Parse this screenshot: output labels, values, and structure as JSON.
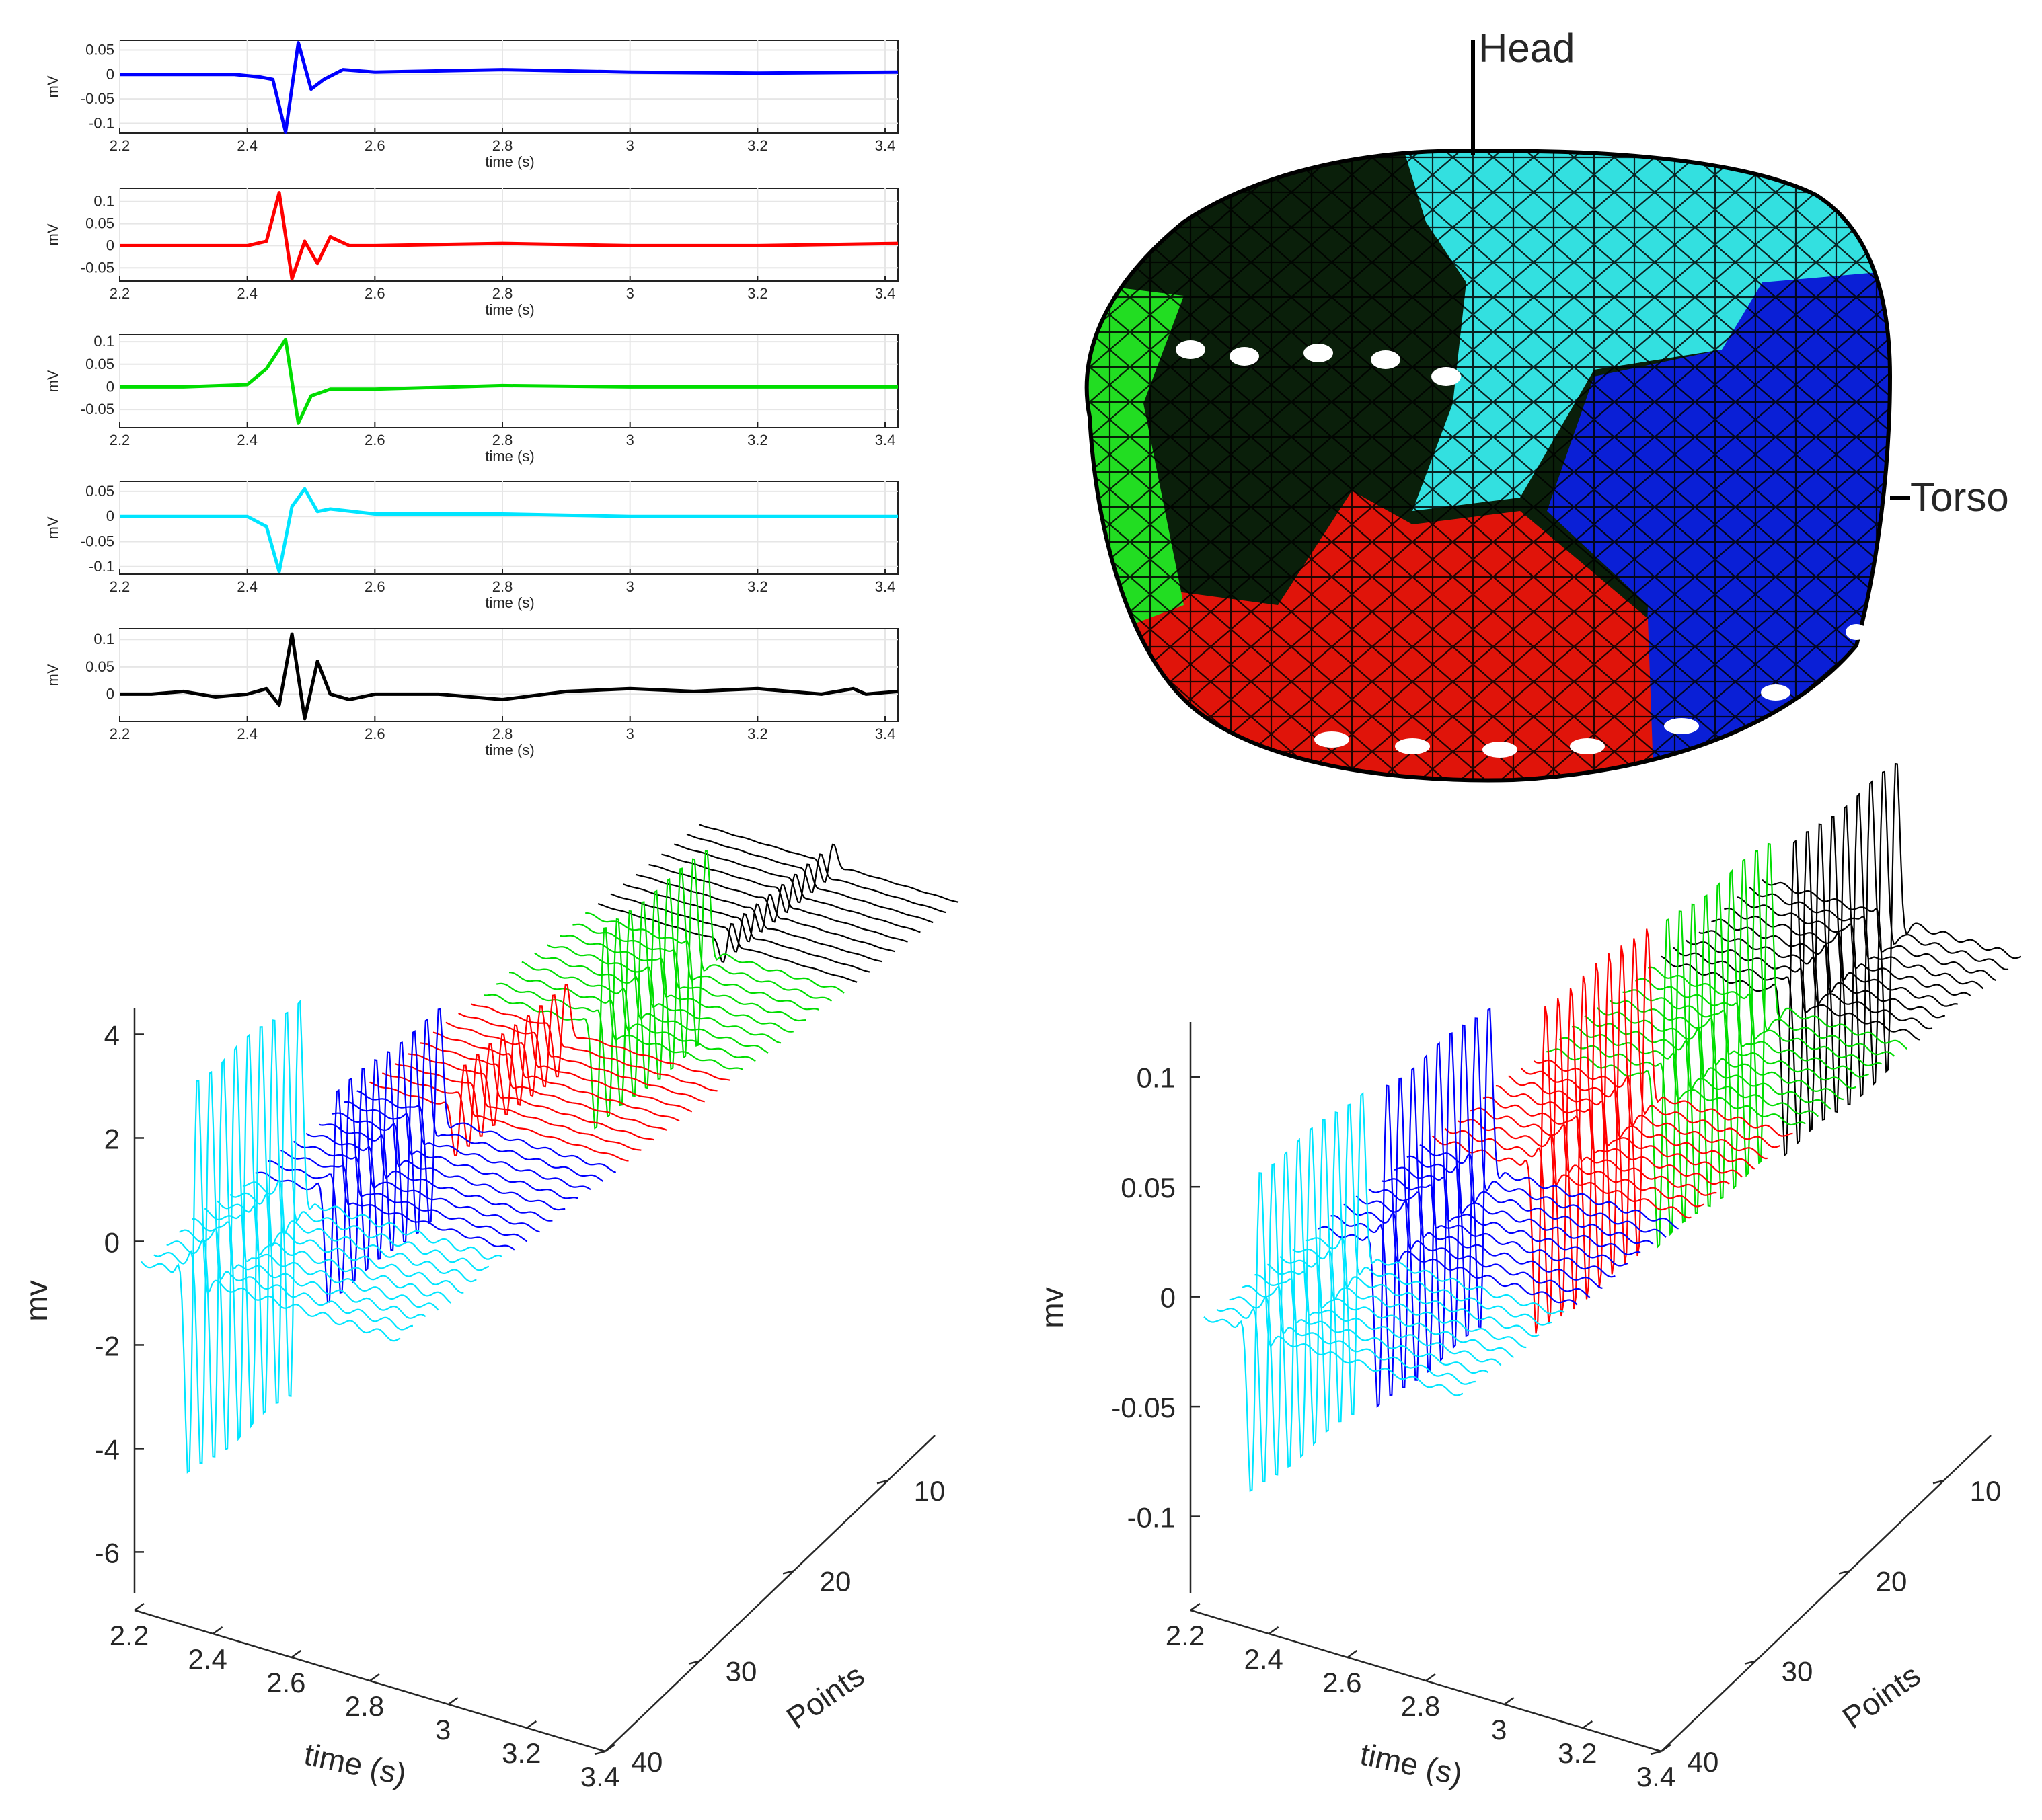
{
  "chart_data": {
    "small_panels": [
      {
        "type": "line",
        "color": "#0000ff",
        "ylabel": "mV",
        "xlabel": "time (s)",
        "xlim": [
          2.2,
          3.42
        ],
        "ylim": [
          -0.12,
          0.07
        ],
        "yticks": [
          0.05,
          0,
          -0.05,
          -0.1
        ],
        "yticklabels": [
          "0.05",
          "0",
          "-0.05",
          "-0.1"
        ],
        "xticks": [
          2.2,
          2.4,
          2.6,
          2.8,
          3,
          3.2,
          3.4
        ],
        "xticklabels": [
          "2.2",
          "2.4",
          "2.6",
          "2.8",
          "3",
          "3.2",
          "3.4"
        ],
        "x": [
          2.2,
          2.3,
          2.38,
          2.42,
          2.44,
          2.46,
          2.48,
          2.5,
          2.52,
          2.55,
          2.6,
          2.8,
          3.0,
          3.2,
          3.42
        ],
        "y": [
          0,
          0,
          0,
          -0.005,
          -0.01,
          -0.118,
          0.065,
          -0.03,
          -0.01,
          0.01,
          0.005,
          0.01,
          0.005,
          0.003,
          0.005
        ]
      },
      {
        "type": "line",
        "color": "#ff0000",
        "ylabel": "mV",
        "xlabel": "time (s)",
        "xlim": [
          2.2,
          3.42
        ],
        "ylim": [
          -0.08,
          0.13
        ],
        "yticks": [
          0.1,
          0.05,
          0,
          -0.05
        ],
        "yticklabels": [
          "0.1",
          "0.05",
          "0",
          "-0.05"
        ],
        "xticks": [
          2.2,
          2.4,
          2.6,
          2.8,
          3,
          3.2,
          3.4
        ],
        "xticklabels": [
          "2.2",
          "2.4",
          "2.6",
          "2.8",
          "3",
          "3.2",
          "3.4"
        ],
        "x": [
          2.2,
          2.3,
          2.4,
          2.43,
          2.45,
          2.47,
          2.49,
          2.51,
          2.53,
          2.56,
          2.6,
          2.8,
          3.0,
          3.2,
          3.42
        ],
        "y": [
          0,
          0,
          0,
          0.01,
          0.12,
          -0.075,
          0.01,
          -0.04,
          0.02,
          0,
          0,
          0.005,
          0,
          0,
          0.005
        ]
      },
      {
        "type": "line",
        "color": "#00dd00",
        "ylabel": "mV",
        "xlabel": "time (s)",
        "xlim": [
          2.2,
          3.42
        ],
        "ylim": [
          -0.09,
          0.115
        ],
        "yticks": [
          0.1,
          0.05,
          0,
          -0.05
        ],
        "yticklabels": [
          "0.1",
          "0.05",
          "0",
          "-0.05"
        ],
        "xticks": [
          2.2,
          2.4,
          2.6,
          2.8,
          3,
          3.2,
          3.4
        ],
        "xticklabels": [
          "2.2",
          "2.4",
          "2.6",
          "2.8",
          "3",
          "3.2",
          "3.4"
        ],
        "x": [
          2.2,
          2.3,
          2.4,
          2.43,
          2.46,
          2.48,
          2.5,
          2.53,
          2.6,
          2.8,
          3.0,
          3.2,
          3.42
        ],
        "y": [
          0,
          0,
          0.005,
          0.04,
          0.105,
          -0.08,
          -0.02,
          -0.005,
          -0.005,
          0.003,
          0,
          0,
          0
        ]
      },
      {
        "type": "line",
        "color": "#00e5ff",
        "ylabel": "mV",
        "xlabel": "time (s)",
        "xlim": [
          2.2,
          3.42
        ],
        "ylim": [
          -0.115,
          0.07
        ],
        "yticks": [
          0.05,
          0,
          -0.05,
          -0.1
        ],
        "yticklabels": [
          "0.05",
          "0",
          "-0.05",
          "-0.1"
        ],
        "xticks": [
          2.2,
          2.4,
          2.6,
          2.8,
          3,
          3.2,
          3.4
        ],
        "xticklabels": [
          "2.2",
          "2.4",
          "2.6",
          "2.8",
          "3",
          "3.2",
          "3.4"
        ],
        "x": [
          2.2,
          2.3,
          2.4,
          2.43,
          2.45,
          2.47,
          2.49,
          2.51,
          2.53,
          2.6,
          2.8,
          3.0,
          3.2,
          3.42
        ],
        "y": [
          0,
          0,
          0,
          -0.02,
          -0.11,
          0.02,
          0.055,
          0.01,
          0.015,
          0.005,
          0.005,
          0,
          0,
          0
        ]
      },
      {
        "type": "line",
        "color": "#000000",
        "ylabel": "mV",
        "xlabel": "time (s)",
        "xlim": [
          2.2,
          3.42
        ],
        "ylim": [
          -0.05,
          0.12
        ],
        "yticks": [
          0.1,
          0.05,
          0
        ],
        "yticklabels": [
          "0.1",
          "0.05",
          "0"
        ],
        "xticks": [
          2.2,
          2.4,
          2.6,
          2.8,
          3,
          3.2,
          3.4
        ],
        "xticklabels": [
          "2.2",
          "2.4",
          "2.6",
          "2.8",
          "3",
          "3.2",
          "3.4"
        ],
        "x": [
          2.2,
          2.25,
          2.3,
          2.35,
          2.4,
          2.43,
          2.45,
          2.47,
          2.49,
          2.51,
          2.53,
          2.56,
          2.6,
          2.7,
          2.8,
          2.9,
          3.0,
          3.1,
          3.2,
          3.3,
          3.35,
          3.37,
          3.42
        ],
        "y": [
          0,
          0,
          0.005,
          -0.005,
          0,
          0.01,
          -0.02,
          0.11,
          -0.045,
          0.06,
          0,
          -0.01,
          0,
          0,
          -0.01,
          0.005,
          0.01,
          0.005,
          0.01,
          0,
          0.01,
          0,
          0.005
        ]
      }
    ],
    "head_model": {
      "type": "3d-mesh",
      "annotations": [
        "Head",
        "Torso"
      ],
      "region_colors": [
        "#0a1f0a",
        "#33e0e0",
        "#0a1fd6",
        "#e0140a",
        "#22dd22"
      ]
    },
    "waterfall_left": {
      "type": "waterfall",
      "ylabel": "mv",
      "xlabel": "time (s)",
      "zlabel": "Points",
      "yticks": [
        4,
        2,
        0,
        -2,
        -4,
        -6
      ],
      "yticklabels": [
        "4",
        "2",
        "0",
        "-2",
        "-4",
        "-6"
      ],
      "ylim": [
        -6.8,
        4.5
      ],
      "xticks": [
        2.2,
        2.4,
        2.6,
        2.8,
        3,
        3.2,
        3.4
      ],
      "xticklabels": [
        "2.2",
        "2.4",
        "2.6",
        "2.8",
        "3",
        "3.2",
        "3.4"
      ],
      "zticks": [
        10,
        20,
        30,
        40
      ],
      "zticklabels": [
        "10",
        "20",
        "30",
        "40"
      ],
      "color_order": [
        "#00e5ff",
        "#0000ff",
        "#ff0000",
        "#00dd00",
        "#000000"
      ],
      "series_amplitudes": [
        6.0,
        3.2,
        1.4,
        3.0,
        0.6
      ],
      "traces_per_group": 9
    },
    "waterfall_right": {
      "type": "waterfall",
      "ylabel": "mv",
      "xlabel": "time (s)",
      "zlabel": "Points",
      "yticks": [
        0.1,
        0.05,
        0,
        -0.05,
        -0.1
      ],
      "yticklabels": [
        "0.1",
        "0.05",
        "0",
        "-0.05",
        "-0.1"
      ],
      "ylim": [
        -0.135,
        0.125
      ],
      "xticks": [
        2.2,
        2.4,
        2.6,
        2.8,
        3,
        3.2,
        3.4
      ],
      "xticklabels": [
        "2.2",
        "2.4",
        "2.6",
        "2.8",
        "3",
        "3.2",
        "3.4"
      ],
      "zticks": [
        10,
        20,
        30,
        40
      ],
      "zticklabels": [
        "10",
        "20",
        "30",
        "40"
      ],
      "color_order": [
        "#00e5ff",
        "#0000ff",
        "#ff0000",
        "#00dd00",
        "#000000"
      ],
      "series_amplitudes": [
        0.115,
        0.115,
        0.115,
        0.115,
        0.11
      ],
      "traces_per_group": 9
    }
  }
}
